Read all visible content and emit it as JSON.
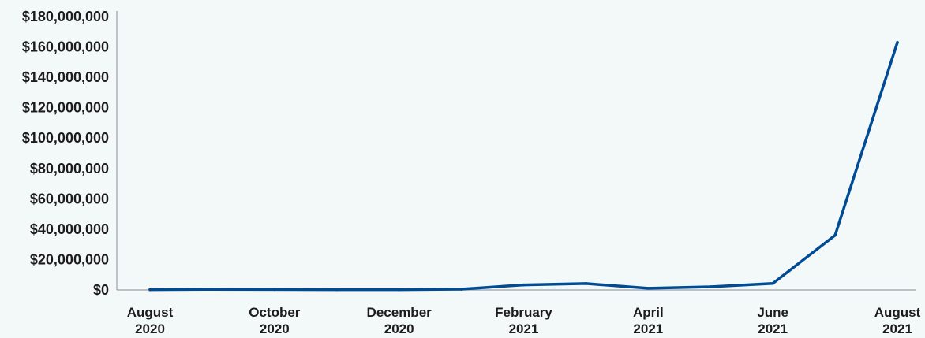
{
  "chart_data": {
    "type": "line",
    "x": [
      "2020-08",
      "2020-09",
      "2020-10",
      "2020-11",
      "2020-12",
      "2021-01",
      "2021-02",
      "2021-03",
      "2021-04",
      "2021-05",
      "2021-06",
      "2021-07",
      "2021-08"
    ],
    "x_tick_labels": [
      {
        "month": "August",
        "year": "2020"
      },
      {
        "month": "October",
        "year": "2020"
      },
      {
        "month": "December",
        "year": "2020"
      },
      {
        "month": "February",
        "year": "2021"
      },
      {
        "month": "April",
        "year": "2021"
      },
      {
        "month": "June",
        "year": "2021"
      },
      {
        "month": "August",
        "year": "2021"
      }
    ],
    "x_tick_indices": [
      0,
      2,
      4,
      6,
      8,
      10,
      12
    ],
    "series": [
      {
        "values": [
          200000,
          400000,
          300000,
          200000,
          200000,
          500000,
          3300000,
          4200000,
          1100000,
          2100000,
          4300000,
          36000000,
          163000000
        ],
        "color": "#004b93"
      }
    ],
    "y_ticks": [
      0,
      20000000,
      40000000,
      60000000,
      80000000,
      100000000,
      120000000,
      140000000,
      160000000,
      180000000
    ],
    "y_tick_labels": [
      "$0",
      "$20,000,000",
      "$40,000,000",
      "$60,000,000",
      "$80,000,000",
      "$100,000,000",
      "$120,000,000",
      "$140,000,000",
      "$160,000,000",
      "$180,000,000"
    ],
    "ylim": [
      0,
      180000000
    ],
    "title": "",
    "xlabel": "",
    "ylabel": "",
    "grid": false,
    "legend": "none",
    "background": "#f3f8f9",
    "text_color": "#1c1c1c",
    "axis_color": "#9aa2a6"
  }
}
